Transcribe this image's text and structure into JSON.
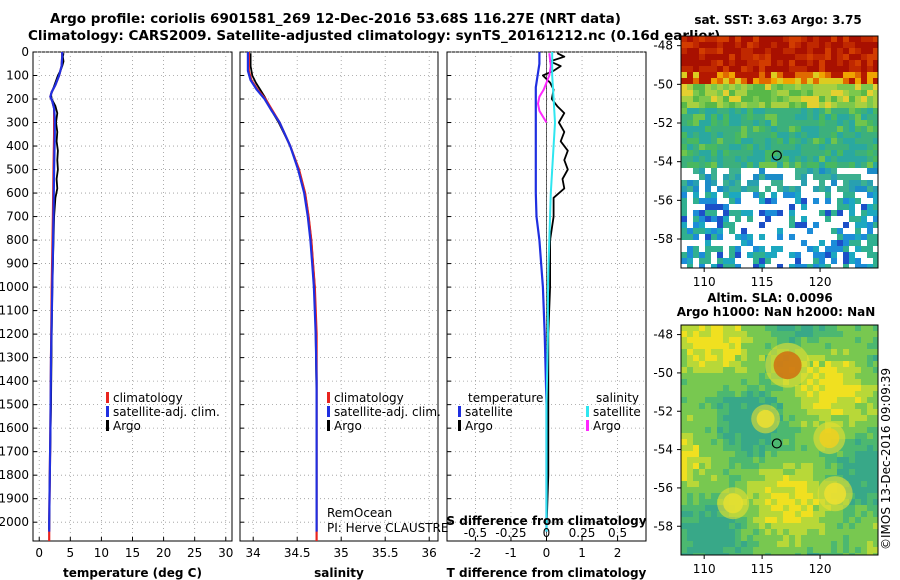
{
  "header": {
    "line1": "Argo profile: coriolis 6901581_269 12-Dec-2016 53.68S 116.27E (NRT data)",
    "line2": "Climatology: CARS2009. Satellite-adjusted climatology: synTS_20161212.nc (0.16d earlier)"
  },
  "colors": {
    "climatology": "#e8241e",
    "satellite": "#1f2fe0",
    "argo": "#000000",
    "sal_satellite": "#2fe6f0",
    "sal_argo": "#ff28ff",
    "grid": "#999999"
  },
  "credits": {
    "line1": "RemOcean",
    "line2": "PI: Herve CLAUSTRE"
  },
  "watermark": "©IMOS 13-Dec-2016 09:09:39",
  "chart_data": [
    {
      "id": "temperature",
      "type": "line",
      "xlabel": "temperature (deg C)",
      "xlim": [
        -1,
        31
      ],
      "xticks": [
        0,
        5,
        10,
        15,
        20,
        25,
        30
      ],
      "xticklabels": [
        "0",
        "5",
        "10",
        "15",
        "20",
        "25",
        "30"
      ],
      "ylim": [
        2080,
        0
      ],
      "yticks": [
        0,
        100,
        200,
        300,
        400,
        500,
        600,
        700,
        800,
        900,
        1000,
        1100,
        1200,
        1300,
        1400,
        1500,
        1600,
        1700,
        1800,
        1900,
        2000
      ],
      "legend": [
        "climatology",
        "satellite-adj. clim.",
        "Argo"
      ],
      "series": [
        {
          "name": "climatology",
          "depth": [
            0,
            20,
            60,
            100,
            140,
            170,
            190,
            210,
            240,
            280,
            350,
            500,
            700,
            1000,
            1300,
            1600,
            2000,
            2080
          ],
          "values": [
            3.7,
            3.7,
            3.6,
            3.2,
            2.6,
            2.0,
            1.8,
            2.1,
            2.4,
            2.4,
            2.4,
            2.3,
            2.2,
            2.0,
            1.9,
            1.8,
            1.6,
            1.6
          ]
        },
        {
          "name": "satellite-adj. clim.",
          "depth": [
            0,
            20,
            60,
            100,
            140,
            170,
            190,
            210,
            240,
            280,
            350,
            500,
            700,
            1000,
            1300,
            1600,
            2000,
            2040
          ],
          "values": [
            3.7,
            3.7,
            3.6,
            3.2,
            2.6,
            2.0,
            1.8,
            2.1,
            2.4,
            2.5,
            2.5,
            2.4,
            2.3,
            2.1,
            1.9,
            1.8,
            1.6,
            1.6
          ]
        },
        {
          "name": "Argo",
          "depth": [
            5,
            20,
            40,
            60,
            80,
            100,
            130,
            160,
            180,
            200,
            230,
            260,
            300,
            340,
            380,
            420,
            460,
            500,
            540,
            580,
            620,
            700,
            800,
            1000,
            1200,
            1500,
            1800,
            2030
          ],
          "values": [
            3.9,
            3.8,
            3.9,
            3.7,
            3.4,
            3.0,
            2.6,
            2.2,
            1.9,
            2.0,
            2.6,
            2.9,
            2.7,
            2.9,
            2.8,
            3.0,
            2.9,
            3.0,
            2.8,
            2.9,
            2.6,
            2.4,
            2.3,
            2.1,
            2.0,
            1.9,
            1.7,
            1.6
          ]
        }
      ]
    },
    {
      "id": "salinity",
      "type": "line",
      "xlabel": "salinity",
      "xlim": [
        33.85,
        36.1
      ],
      "xticks": [
        34,
        34.5,
        35,
        35.5,
        36
      ],
      "xticklabels": [
        "34",
        "34.5",
        "35",
        "35.5",
        "36"
      ],
      "ylim": [
        2080,
        0
      ],
      "yticks": [
        0,
        100,
        200,
        300,
        400,
        500,
        600,
        700,
        800,
        900,
        1000,
        1100,
        1200,
        1300,
        1400,
        1500,
        1600,
        1700,
        1800,
        1900,
        2000
      ],
      "legend": [
        "climatology",
        "satellite-adj. clim.",
        "Argo"
      ],
      "series": [
        {
          "name": "climatology",
          "depth": [
            0,
            80,
            120,
            160,
            200,
            250,
            300,
            400,
            500,
            600,
            700,
            800,
            900,
            1000,
            1100,
            1200,
            1400,
            1600,
            1800,
            2080
          ],
          "values": [
            33.95,
            33.95,
            33.98,
            34.05,
            34.14,
            34.22,
            34.3,
            34.42,
            34.52,
            34.59,
            34.63,
            34.66,
            34.68,
            34.7,
            34.71,
            34.72,
            34.72,
            34.72,
            34.72,
            34.72
          ]
        },
        {
          "name": "satellite-adj. clim.",
          "depth": [
            0,
            80,
            120,
            160,
            200,
            250,
            300,
            400,
            500,
            600,
            700,
            800,
            900,
            1000,
            1100,
            1200,
            1400,
            1600,
            1800,
            2040
          ],
          "values": [
            33.94,
            33.94,
            33.97,
            34.04,
            34.13,
            34.21,
            34.3,
            34.42,
            34.51,
            34.58,
            34.62,
            34.65,
            34.67,
            34.69,
            34.7,
            34.71,
            34.72,
            34.72,
            34.72,
            34.72
          ]
        },
        {
          "name": "Argo",
          "depth": [
            5,
            60,
            100,
            130,
            160,
            190,
            220,
            250,
            300,
            400,
            500,
            600,
            700,
            800,
            1000,
            1200,
            1500,
            1800,
            2030
          ],
          "values": [
            33.97,
            33.97,
            33.99,
            34.03,
            34.08,
            34.13,
            34.17,
            34.21,
            34.29,
            34.42,
            34.52,
            34.59,
            34.63,
            34.66,
            34.7,
            34.71,
            34.72,
            34.72,
            34.72
          ]
        }
      ]
    },
    {
      "id": "difference",
      "type": "line",
      "xlabel": "T difference from climatology",
      "xlabel2": "S difference from climatology",
      "xlim": [
        -2.8,
        2.8
      ],
      "xticks": [
        -2,
        -1,
        0,
        1,
        2
      ],
      "xticklabels": [
        "-2",
        "-1",
        "0",
        "1",
        "2"
      ],
      "sticklabels": [
        "-0.5",
        "-0.25",
        "0",
        "0.25",
        "0.5"
      ],
      "ylim": [
        2080,
        0
      ],
      "yticks": [
        0,
        100,
        200,
        300,
        400,
        500,
        600,
        700,
        800,
        900,
        1000,
        1100,
        1200,
        1300,
        1400,
        1500,
        1600,
        1700,
        1800,
        1900,
        2000
      ],
      "legend_temperature_title": "temperature",
      "legend_salinity_title": "salinity",
      "legend_temperature": [
        "satellite",
        "Argo"
      ],
      "legend_salinity": [
        "satellite",
        "Argo"
      ],
      "series": [
        {
          "name": "T satellite",
          "depth": [
            0,
            50,
            100,
            150,
            200,
            250,
            300,
            400,
            500,
            600,
            700,
            800,
            1000,
            1200,
            1500,
            1800,
            2040
          ],
          "values": [
            -0.2,
            -0.2,
            -0.25,
            -0.3,
            -0.3,
            -0.3,
            -0.3,
            -0.3,
            -0.3,
            -0.3,
            -0.28,
            -0.2,
            -0.1,
            -0.05,
            0,
            0,
            0
          ]
        },
        {
          "name": "T Argo",
          "depth": [
            5,
            20,
            40,
            60,
            80,
            100,
            130,
            160,
            200,
            230,
            260,
            300,
            340,
            380,
            420,
            460,
            500,
            540,
            580,
            620,
            700,
            800,
            1000,
            1200,
            1500,
            1800,
            2030
          ],
          "values": [
            0.3,
            0.5,
            0.1,
            0.4,
            0.2,
            -0.1,
            0.1,
            0.2,
            0.15,
            0.3,
            0.5,
            0.35,
            0.5,
            0.4,
            0.6,
            0.5,
            0.6,
            0.45,
            0.5,
            0.2,
            0.2,
            0.1,
            0.1,
            0.05,
            0.05,
            0.05,
            0.0
          ]
        },
        {
          "name": "S satellite",
          "depth": [
            0,
            100,
            200,
            300,
            400,
            600,
            800,
            1000,
            1200,
            1500,
            1800,
            2040
          ],
          "values": [
            0.04,
            0.04,
            0.05,
            0.06,
            0.05,
            0.03,
            0.02,
            0.01,
            0.01,
            0.0,
            0.0,
            0.0
          ]
        },
        {
          "name": "S Argo",
          "depth": [
            5,
            60,
            100,
            130,
            160,
            190,
            220,
            250,
            300
          ],
          "values": [
            0.02,
            0.03,
            0.02,
            0.0,
            -0.02,
            -0.05,
            -0.06,
            -0.05,
            0.0
          ]
        }
      ]
    },
    {
      "id": "sst-map",
      "type": "heatmap",
      "title": "sat. SST: 3.63 Argo: 3.75",
      "xlim": [
        108,
        125
      ],
      "ylim": [
        -59.5,
        -47.5
      ],
      "xticks": [
        110,
        115,
        120
      ],
      "xticklabels": [
        "110",
        "115",
        "120"
      ],
      "yticks": [
        -48,
        -50,
        -52,
        -54,
        -56,
        -58
      ],
      "yticklabels": [
        "-48",
        "-50",
        "-52",
        "-54",
        "-56",
        "-58"
      ],
      "marker": {
        "lon": 116.27,
        "lat": -53.68
      }
    },
    {
      "id": "sla-map",
      "type": "heatmap",
      "title": "Altim. SLA: 0.0096",
      "subtitle": "Argo h1000: NaN h2000: NaN",
      "xlim": [
        108,
        125
      ],
      "ylim": [
        -59.5,
        -47.5
      ],
      "xticks": [
        110,
        115,
        120
      ],
      "xticklabels": [
        "110",
        "115",
        "120"
      ],
      "yticks": [
        -48,
        -50,
        -52,
        -54,
        -56,
        -58
      ],
      "yticklabels": [
        "-48",
        "-50",
        "-52",
        "-54",
        "-56",
        "-58"
      ],
      "marker": {
        "lon": 116.27,
        "lat": -53.68
      }
    }
  ]
}
